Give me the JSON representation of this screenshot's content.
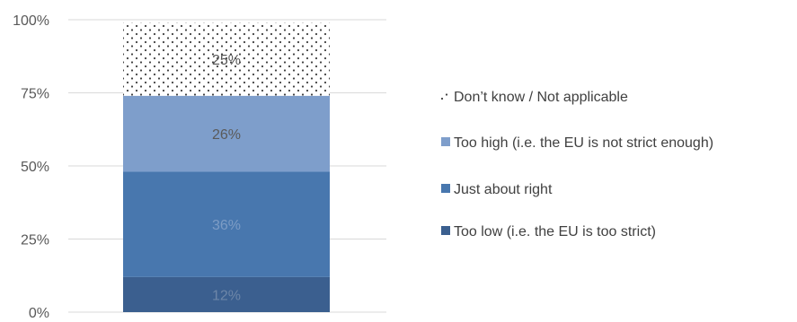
{
  "chart_data": {
    "type": "bar",
    "stacked": true,
    "categories": [
      ""
    ],
    "yaxis": {
      "min": 0,
      "max": 100,
      "ticks": [
        0,
        25,
        50,
        75,
        100
      ],
      "tick_labels": [
        "0%",
        "25%",
        "50%",
        "75%",
        "100%"
      ]
    },
    "grid": true,
    "legend_position": "right",
    "series": [
      {
        "name": "Too low (i.e. the EU is too strict)",
        "value": 12,
        "label": "12%",
        "color": "#3b5f8f",
        "label_color": "#6d86a8",
        "pattern": "solid"
      },
      {
        "name": "Just about right",
        "value": 36,
        "label": "36%",
        "color": "#4877ae",
        "label_color": "#7d9cc5",
        "pattern": "solid"
      },
      {
        "name": "Too high (i.e. the EU is not strict enough)",
        "value": 26,
        "label": "26%",
        "color": "#7e9ecb",
        "label_color": "#5a5a5a",
        "pattern": "solid"
      },
      {
        "name": "Don’t know / Not applicable",
        "value": 25,
        "label": "25%",
        "color": "#ffffff",
        "label_color": "#555555",
        "pattern": "dots"
      }
    ],
    "colors": {
      "axis_text": "#595959",
      "gridline": "#d9d9d9",
      "legend_text": "#404040"
    }
  }
}
